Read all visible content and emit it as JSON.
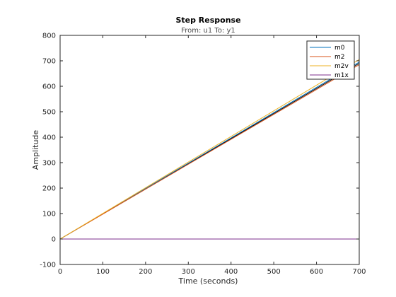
{
  "chart_data": {
    "type": "line",
    "title": "Step Response",
    "subtitle": "From: u1  To: y1",
    "xlabel": "Time (seconds)",
    "ylabel": "Amplitude",
    "xlim": [
      0,
      700
    ],
    "ylim": [
      -100,
      800
    ],
    "xticks": [
      "0",
      "100",
      "200",
      "300",
      "400",
      "500",
      "600",
      "700"
    ],
    "yticks": [
      "-100",
      "0",
      "100",
      "200",
      "300",
      "400",
      "500",
      "600",
      "700",
      "800"
    ],
    "grid": false,
    "legend_position": "top-right",
    "series": [
      {
        "name": "m0",
        "color": "#0072bd",
        "x": [
          0,
          700
        ],
        "y": [
          0,
          695
        ]
      },
      {
        "name": "m2",
        "color": "#d95319",
        "x": [
          0,
          700
        ],
        "y": [
          0,
          685
        ]
      },
      {
        "name": "m2v",
        "color": "#edb120",
        "x": [
          0,
          700
        ],
        "y": [
          0,
          705
        ]
      },
      {
        "name": "m1x",
        "color": "#7e2f8e",
        "x": [
          0,
          700
        ],
        "y": [
          0,
          0
        ]
      }
    ],
    "extra_lines": [
      {
        "color": "#000000",
        "x": [
          0,
          700
        ],
        "y": [
          0,
          690
        ]
      }
    ]
  }
}
